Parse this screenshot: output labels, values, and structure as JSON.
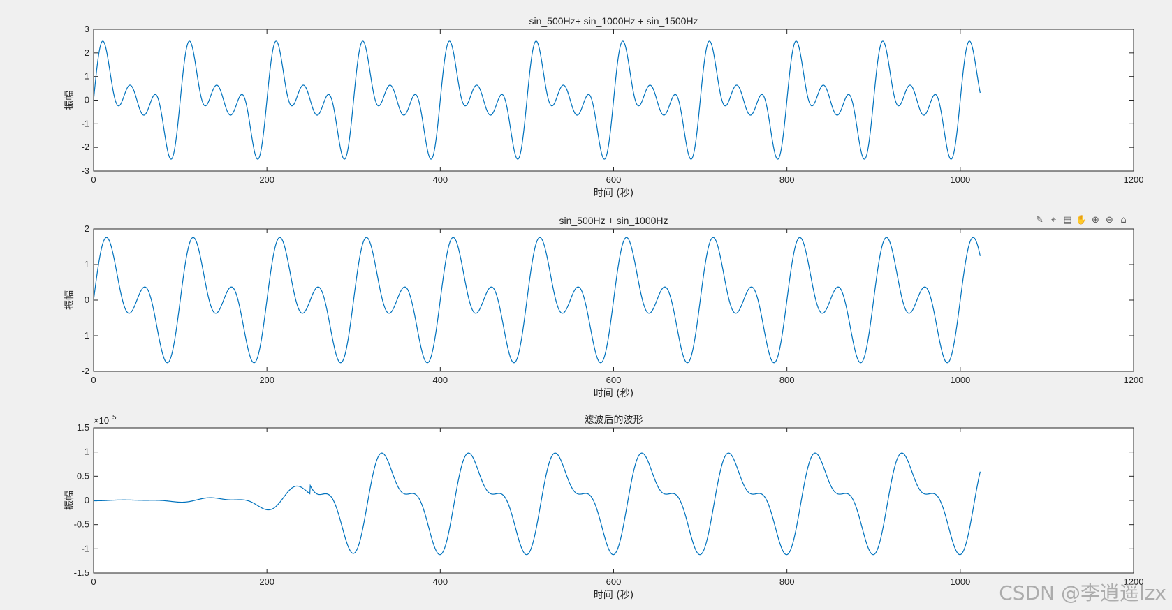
{
  "chart_data": [
    {
      "type": "line",
      "title": "sin_500Hz+ sin_1000Hz + sin_1500Hz",
      "xlabel": "时间 (秒)",
      "ylabel": "振幅",
      "xlim": [
        0,
        1200
      ],
      "ylim": [
        -3,
        3
      ],
      "xticks": [
        0,
        200,
        400,
        600,
        800,
        1000,
        1200
      ],
      "yticks": [
        -3,
        -2,
        -1,
        0,
        1,
        2,
        3
      ],
      "ytick_labels": [
        "-3",
        "-2",
        "-1",
        "0",
        "1",
        "2",
        "3"
      ],
      "grid": false,
      "color": "#0072BD",
      "series": [
        {
          "x_range": [
            0,
            1023
          ],
          "period": 100,
          "description_formula": "sin(2πx/100)+sin(2πx·2/100)+sin(2πx·3/100)",
          "components": [
            {
              "amp": 1,
              "harmonic": 1
            },
            {
              "amp": 1,
              "harmonic": 2
            },
            {
              "amp": 1,
              "harmonic": 3
            }
          ],
          "y_peak": 2.5,
          "y_trough": -2.5
        }
      ]
    },
    {
      "type": "line",
      "title": "sin_500Hz + sin_1000Hz",
      "xlabel": "时间 (秒)",
      "ylabel": "振幅",
      "xlim": [
        0,
        1200
      ],
      "ylim": [
        -2,
        2
      ],
      "xticks": [
        0,
        200,
        400,
        600,
        800,
        1000,
        1200
      ],
      "yticks": [
        -2,
        -1,
        0,
        1,
        2
      ],
      "ytick_labels": [
        "-2",
        "-1",
        "0",
        "1",
        "2"
      ],
      "grid": false,
      "color": "#0072BD",
      "series": [
        {
          "x_range": [
            0,
            1023
          ],
          "period": 100,
          "components": [
            {
              "amp": 1,
              "harmonic": 1
            },
            {
              "amp": 1,
              "harmonic": 2
            }
          ],
          "y_peak": 1.76,
          "y_trough": -1.76
        }
      ]
    },
    {
      "type": "line",
      "title": "滤波后的波形",
      "xlabel": "时间 (秒)",
      "ylabel": "振幅",
      "xlim": [
        0,
        1200
      ],
      "ylim": [
        -1.5,
        1.5
      ],
      "y_exponent_label": "×10",
      "y_exponent_value": "5",
      "xticks": [
        0,
        200,
        400,
        600,
        800,
        1000,
        1200
      ],
      "yticks": [
        -1.5,
        -1,
        -0.5,
        0,
        0.5,
        1,
        1.5
      ],
      "ytick_labels": [
        "-1.5",
        "-1",
        "-0.5",
        "0",
        "0.5",
        "1",
        "1.5"
      ],
      "grid": false,
      "color": "#0072BD",
      "series": [
        {
          "x_range": [
            0,
            1023
          ],
          "period": 100,
          "transient_end": 250,
          "steady_peak": 1.15,
          "steady_trough": -1.14,
          "units_multiplier": 100000
        }
      ]
    }
  ],
  "toolbar": {
    "icons": [
      "brush-icon",
      "data-tip-icon",
      "legend-icon",
      "pan-icon",
      "zoom-in-icon",
      "zoom-out-icon",
      "home-icon"
    ]
  },
  "watermark": "CSDN @李逍遥lzx"
}
